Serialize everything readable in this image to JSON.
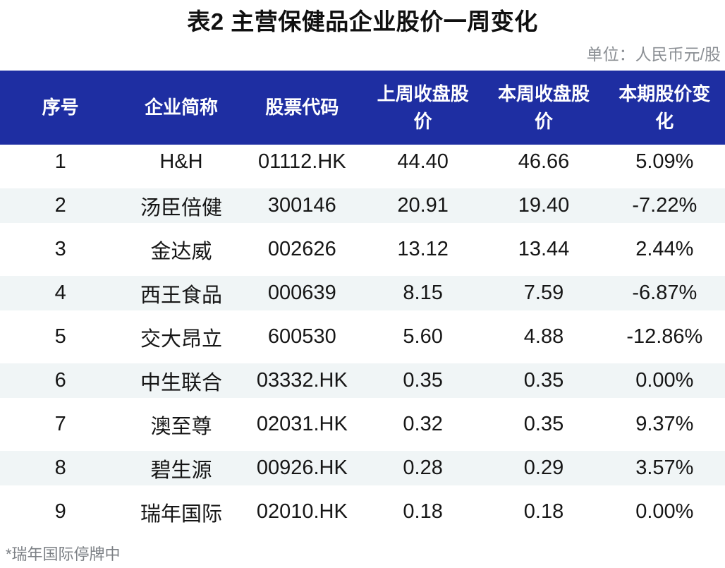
{
  "title": "表2 主营保健品企业股价一周变化",
  "unit_note": "单位：人民币元/股",
  "footnote": "*瑞年国际停牌中",
  "colors": {
    "header-bg": "#1E2EA2",
    "header-text": "#FFFFFF",
    "row-alt-bg": "#F0F5F6",
    "row-bg": "#FFFFFF",
    "body-text": "#161616",
    "muted-text": "#8B8F94",
    "footnote-text": "#7C8085"
  },
  "table": {
    "columns": [
      "序号",
      "企业简称",
      "股票代码",
      "上周收盘股价",
      "本周收盘股价",
      "本期股价变化"
    ],
    "rows": [
      [
        "1",
        "H&H",
        "01112.HK",
        "44.40",
        "46.66",
        "5.09%"
      ],
      [
        "2",
        "汤臣倍健",
        "300146",
        "20.91",
        "19.40",
        "-7.22%"
      ],
      [
        "3",
        "金达威",
        "002626",
        "13.12",
        "13.44",
        "2.44%"
      ],
      [
        "4",
        "西王食品",
        "000639",
        "8.15",
        "7.59",
        "-6.87%"
      ],
      [
        "5",
        "交大昂立",
        "600530",
        "5.60",
        "4.88",
        "-12.86%"
      ],
      [
        "6",
        "中生联合",
        "03332.HK",
        "0.35",
        "0.35",
        "0.00%"
      ],
      [
        "7",
        "澳至尊",
        "02031.HK",
        "0.32",
        "0.35",
        "9.37%"
      ],
      [
        "8",
        "碧生源",
        "00926.HK",
        "0.28",
        "0.29",
        "3.57%"
      ],
      [
        "9",
        "瑞年国际",
        "02010.HK",
        "0.18",
        "0.18",
        "0.00%"
      ]
    ]
  },
  "chart_data": {
    "type": "table",
    "title": "表2 主营保健品企业股价一周变化",
    "columns": [
      "序号",
      "企业简称",
      "股票代码",
      "上周收盘股价",
      "本周收盘股价",
      "本期股价变化"
    ],
    "rows": [
      [
        "1",
        "H&H",
        "01112.HK",
        "44.40",
        "46.66",
        "5.09%"
      ],
      [
        "2",
        "汤臣倍健",
        "300146",
        "20.91",
        "19.40",
        "-7.22%"
      ],
      [
        "3",
        "金达威",
        "002626",
        "13.12",
        "13.44",
        "2.44%"
      ],
      [
        "4",
        "西王食品",
        "000639",
        "8.15",
        "7.59",
        "-6.87%"
      ],
      [
        "5",
        "交大昂立",
        "600530",
        "5.60",
        "4.88",
        "-12.86%"
      ],
      [
        "6",
        "中生联合",
        "03332.HK",
        "0.35",
        "0.35",
        "0.00%"
      ],
      [
        "7",
        "澳至尊",
        "02031.HK",
        "0.32",
        "0.35",
        "9.37%"
      ],
      [
        "8",
        "碧生源",
        "00926.HK",
        "0.28",
        "0.29",
        "3.57%"
      ],
      [
        "9",
        "瑞年国际",
        "02010.HK",
        "0.18",
        "0.18",
        "0.00%"
      ]
    ]
  }
}
